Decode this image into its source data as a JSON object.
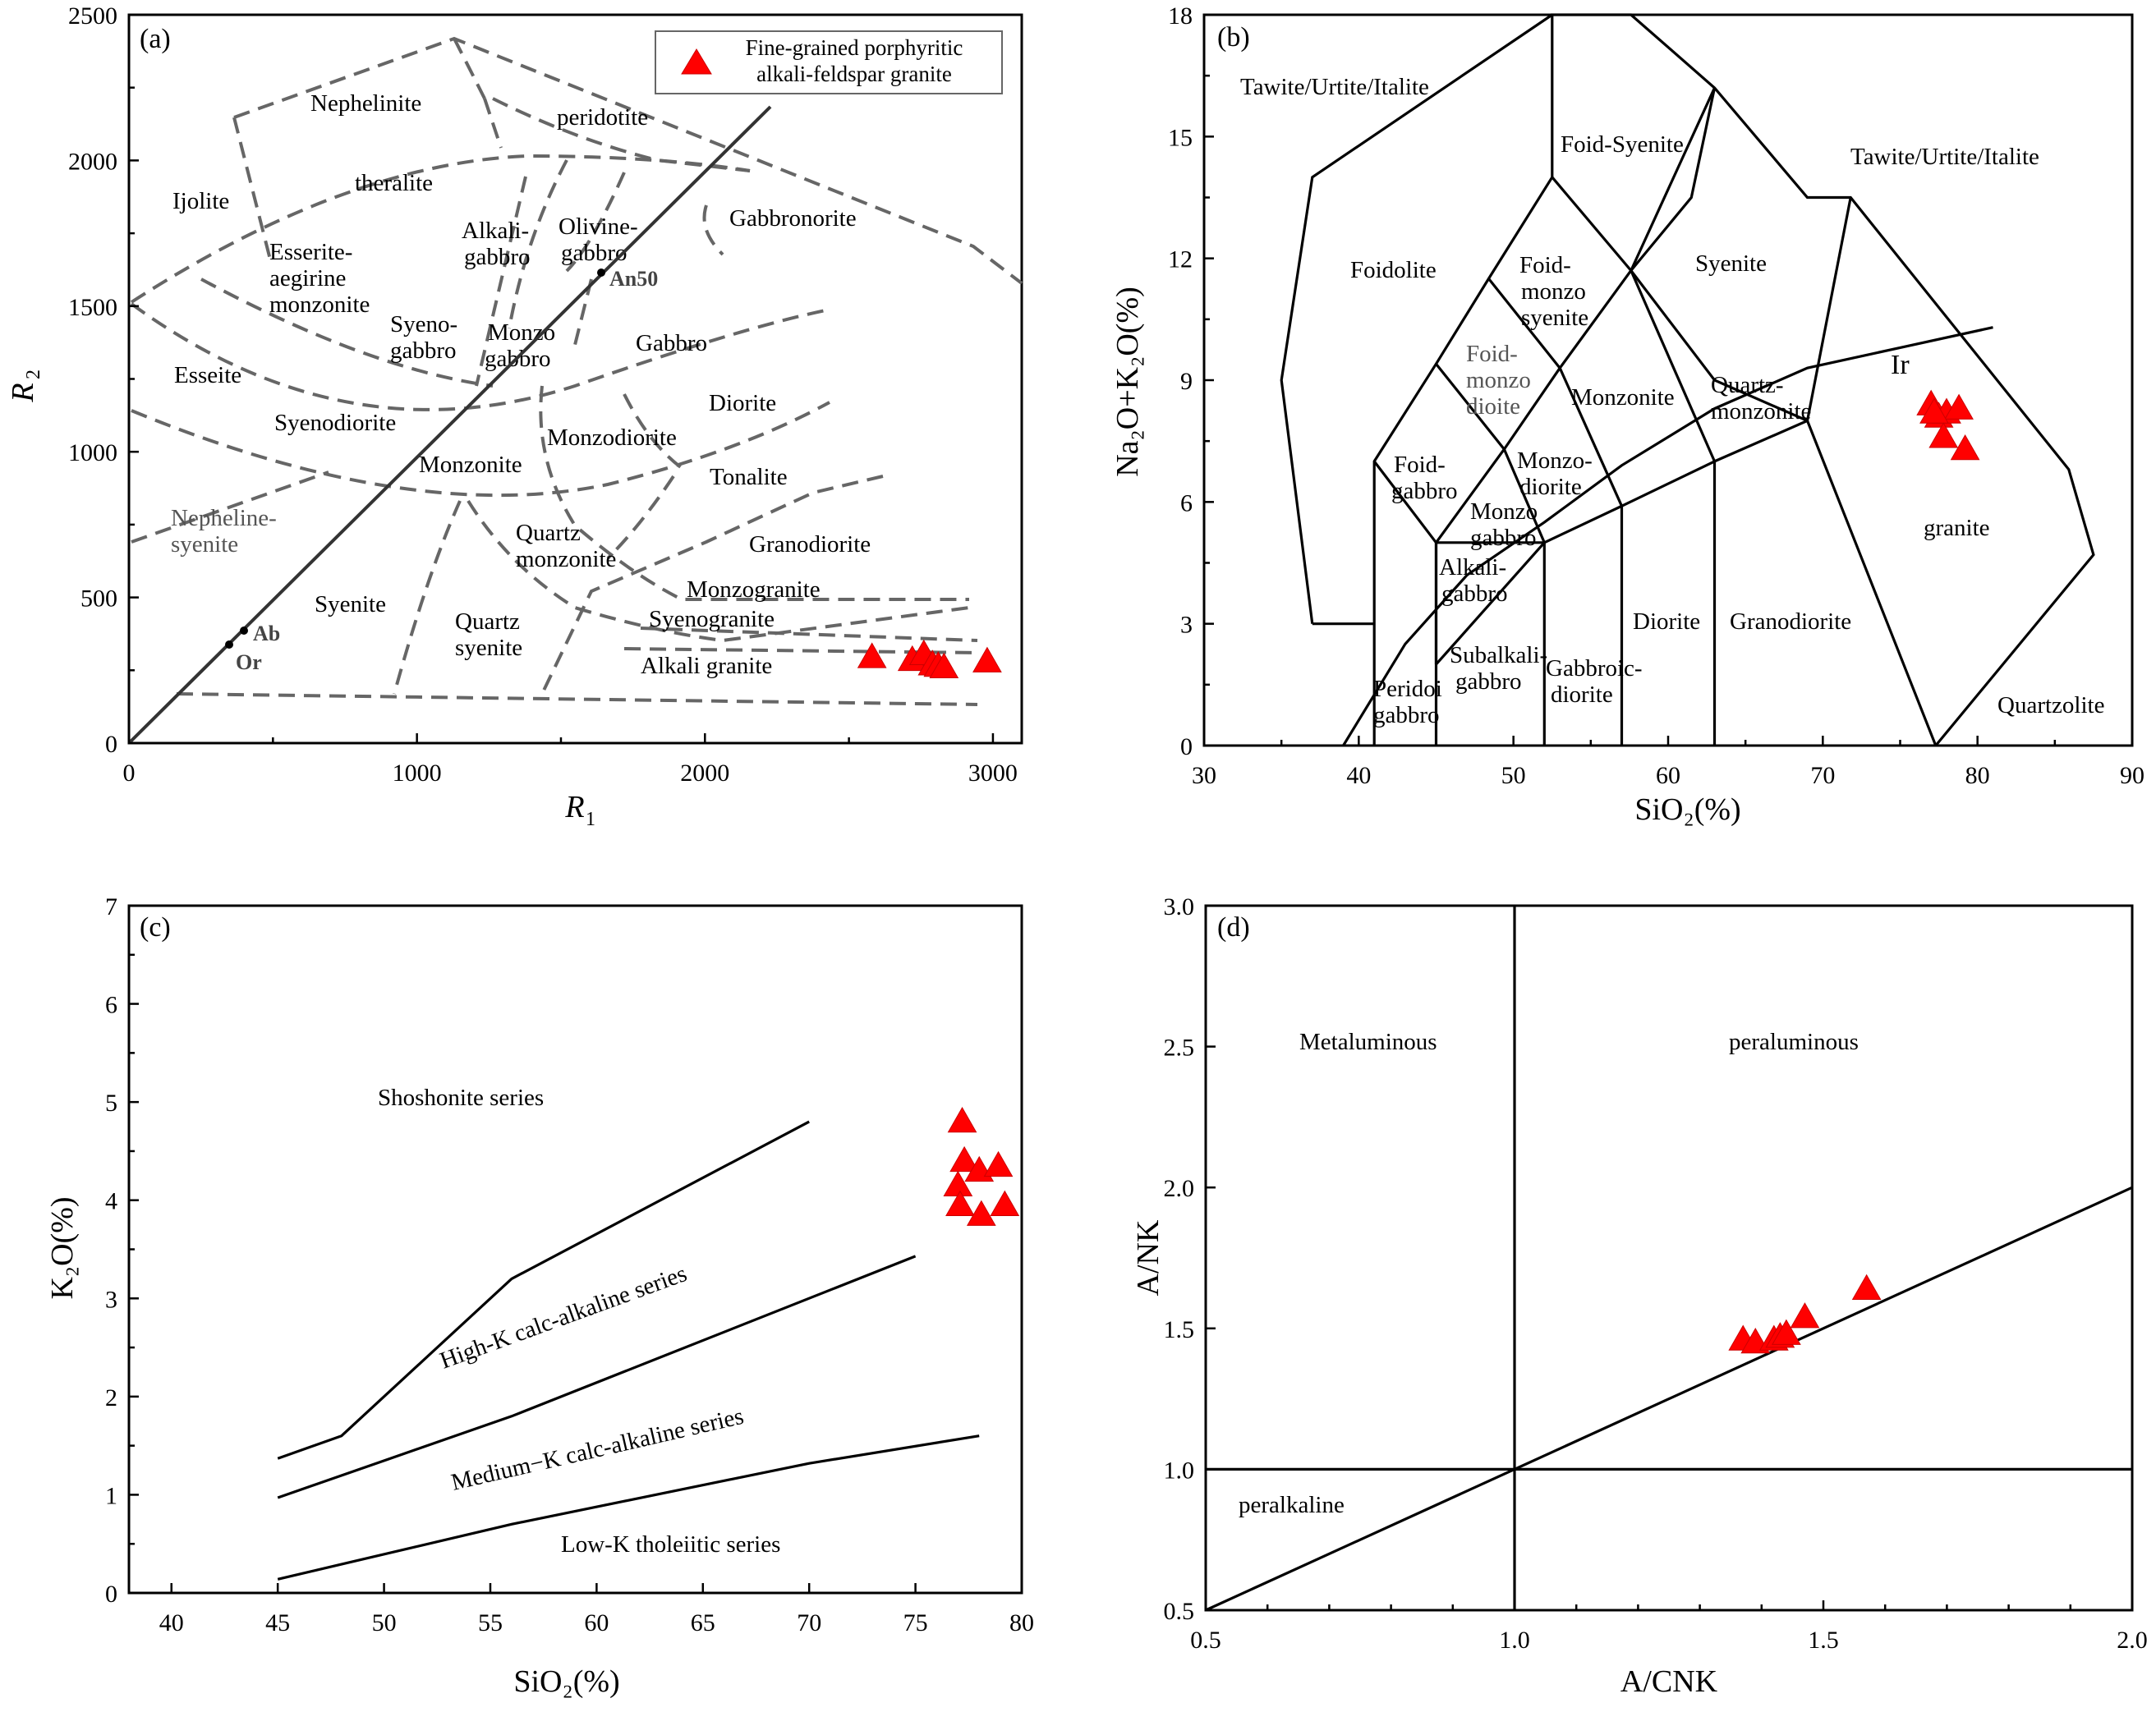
{
  "legend": {
    "label_line1": "Fine-grained porphyritic",
    "label_line2": "alkali-feldspar granite",
    "marker_color": "#ff0000"
  },
  "chart_data": [
    {
      "id": "a",
      "type": "scatter",
      "panel_label": "(a)",
      "title": "",
      "xlabel": "R",
      "xlabel_sub": "1",
      "ylabel": "R",
      "ylabel_sub": "2",
      "xlim": [
        0,
        3100
      ],
      "ylim": [
        0,
        2500
      ],
      "xticks": [
        0,
        1000,
        2000,
        3000
      ],
      "yticks": [
        0,
        500,
        1000,
        1500,
        2000,
        2500
      ],
      "fields": [
        "Nephelinite",
        "peridotite",
        "theralite",
        "Ijolite",
        "Gabbronorite",
        "Alkali-",
        "gabbro",
        "Olivine-",
        "gabbro",
        "Esserite-",
        "aegirine",
        "monzonite",
        "Syeno-",
        "gabbro",
        "Monzo",
        "gabbro",
        "Gabbro",
        "Esseite",
        "Diorite",
        "Syenodiorite",
        "Monzodiorite",
        "Monzonite",
        "Tonalite",
        "Nepheline-",
        "syenite",
        "Quartz",
        "monzonite",
        "Granodiorite",
        "Monzogranite",
        "Syenite",
        "Quartz",
        "syenite",
        "Syenogranite",
        "Alkali granite"
      ],
      "line_labels": [
        "An50",
        "Ab",
        "Or"
      ],
      "series": [
        {
          "name": "Fine-grained porphyritic alkali-feldspar granite",
          "x": [
            2580,
            2720,
            2760,
            2790,
            2810,
            2830,
            2980
          ],
          "y": [
            295,
            285,
            305,
            270,
            265,
            260,
            280
          ]
        }
      ]
    },
    {
      "id": "b",
      "type": "scatter",
      "panel_label": "(b)",
      "title": "",
      "xlabel": "SiO₂(%)",
      "ylabel": "Na₂O+K₂O(%)",
      "xlim": [
        30,
        90
      ],
      "ylim": [
        0,
        18
      ],
      "xticks": [
        30,
        40,
        50,
        60,
        70,
        80,
        90
      ],
      "yticks": [
        0,
        3,
        6,
        9,
        12,
        15,
        18
      ],
      "fields": [
        "Tawite/Urtite/Italite",
        "Foid-Syenite",
        "Tawite/Urtite/Italite",
        "Foidolite",
        "Foid-",
        "monzo",
        "syenite",
        "Syenite",
        "Foid-",
        "monzo",
        "dioite",
        "Monzonite",
        "Quartz-",
        "monzonite",
        "granite",
        "Foid-",
        "gabbro",
        "Monzo-",
        "diorite",
        "Monzo",
        "gabbro",
        "Alkali-",
        "gabbro",
        "Diorite",
        "Granodiorite",
        "Subalkali-",
        "gabbro",
        "Gabbroic-",
        "diorite",
        "Peridoi",
        "gabbro",
        "Quartzolite",
        "Ir"
      ],
      "series": [
        {
          "name": "Fine-grained porphyritic alkali-feldspar granite",
          "x": [
            77.0,
            77.5,
            78.0,
            78.8,
            77.2,
            77.8,
            79.2
          ],
          "y": [
            8.4,
            8.1,
            8.2,
            8.3,
            8.2,
            7.6,
            7.3
          ]
        }
      ]
    },
    {
      "id": "c",
      "type": "scatter",
      "panel_label": "(c)",
      "title": "",
      "xlabel": "SiO₂(%)",
      "ylabel": "K₂O(%)",
      "xlim": [
        38,
        80
      ],
      "ylim": [
        0,
        7
      ],
      "xticks": [
        40,
        45,
        50,
        55,
        60,
        65,
        70,
        75,
        80
      ],
      "yticks": [
        0,
        1,
        2,
        3,
        4,
        5,
        6,
        7
      ],
      "fields": [
        "Shoshonite  series",
        "High-K calc-alkaline series",
        "Medium−K calc-alkaline series",
        "Low-K  tholeiitic series"
      ],
      "series": [
        {
          "name": "Fine-grained porphyritic alkali-feldspar granite",
          "x": [
            77.2,
            77.3,
            78.0,
            78.9,
            77.0,
            77.1,
            78.1,
            79.2
          ],
          "y": [
            4.8,
            4.4,
            4.3,
            4.35,
            4.15,
            3.95,
            3.85,
            3.95
          ]
        }
      ]
    },
    {
      "id": "d",
      "type": "scatter",
      "panel_label": "(d)",
      "title": "",
      "xlabel": "A/CNK",
      "ylabel": "A/NK",
      "xlim": [
        0.5,
        2.0
      ],
      "ylim": [
        0.5,
        3.0
      ],
      "xticks": [
        0.5,
        1.0,
        1.5,
        2.0
      ],
      "yticks": [
        0.5,
        1.0,
        1.5,
        2.0,
        2.5,
        3.0
      ],
      "fields": [
        "Metaluminous",
        "peraluminous",
        "peralkaline"
      ],
      "series": [
        {
          "name": "Fine-grained porphyritic alkali-feldspar granite",
          "x": [
            1.37,
            1.39,
            1.42,
            1.43,
            1.44,
            1.47,
            1.57
          ],
          "y": [
            1.46,
            1.45,
            1.46,
            1.47,
            1.48,
            1.54,
            1.64
          ]
        }
      ]
    }
  ]
}
